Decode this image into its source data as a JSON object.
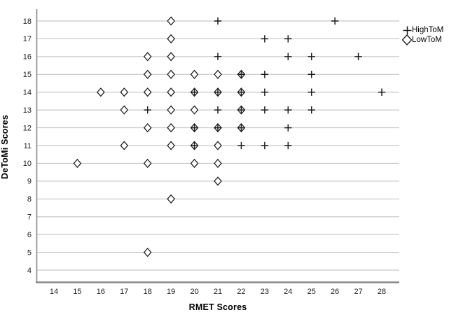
{
  "chart_data": {
    "type": "scatter",
    "title": "",
    "xlabel": "RMET Scores",
    "ylabel": "DeToMi Scores",
    "xlim": [
      13.25,
      28.75
    ],
    "ylim": [
      3.3,
      18.65
    ],
    "x_ticks": [
      14,
      15,
      16,
      17,
      18,
      19,
      20,
      21,
      22,
      23,
      24,
      25,
      26,
      27,
      28
    ],
    "y_ticks": [
      4,
      5,
      6,
      7,
      8,
      9,
      10,
      11,
      12,
      13,
      14,
      15,
      16,
      17,
      18
    ],
    "grid": "horizontal-only",
    "legend_position": "top-right-outside",
    "series": [
      {
        "name": "LowToM",
        "marker": "diamond",
        "points": [
          [
            19,
            18
          ],
          [
            19,
            17
          ],
          [
            18,
            16
          ],
          [
            19,
            16
          ],
          [
            18,
            15
          ],
          [
            19,
            15
          ],
          [
            20,
            15
          ],
          [
            21,
            15
          ],
          [
            22,
            15
          ],
          [
            16,
            14
          ],
          [
            17,
            14
          ],
          [
            18,
            14
          ],
          [
            19,
            14
          ],
          [
            20,
            14
          ],
          [
            21,
            14
          ],
          [
            22,
            14
          ],
          [
            17,
            13
          ],
          [
            19,
            13
          ],
          [
            20,
            13
          ],
          [
            22,
            13
          ],
          [
            18,
            12
          ],
          [
            19,
            12
          ],
          [
            20,
            12
          ],
          [
            21,
            12
          ],
          [
            22,
            12
          ],
          [
            17,
            11
          ],
          [
            19,
            11
          ],
          [
            20,
            11
          ],
          [
            21,
            11
          ],
          [
            15,
            10
          ],
          [
            18,
            10
          ],
          [
            20,
            10
          ],
          [
            21,
            10
          ],
          [
            21,
            9
          ],
          [
            19,
            8
          ],
          [
            18,
            5
          ]
        ]
      },
      {
        "name": "HighToM",
        "marker": "plus",
        "points": [
          [
            21,
            18
          ],
          [
            26,
            18
          ],
          [
            23,
            17
          ],
          [
            24,
            17
          ],
          [
            21,
            16
          ],
          [
            24,
            16
          ],
          [
            25,
            16
          ],
          [
            27,
            16
          ],
          [
            22,
            15
          ],
          [
            23,
            15
          ],
          [
            25,
            15
          ],
          [
            20,
            14
          ],
          [
            21,
            14
          ],
          [
            22,
            14
          ],
          [
            23,
            14
          ],
          [
            25,
            14
          ],
          [
            28,
            14
          ],
          [
            18,
            13
          ],
          [
            21,
            13
          ],
          [
            22,
            13
          ],
          [
            23,
            13
          ],
          [
            24,
            13
          ],
          [
            25,
            13
          ],
          [
            20,
            12
          ],
          [
            21,
            12
          ],
          [
            22,
            12
          ],
          [
            24,
            12
          ],
          [
            20,
            11
          ],
          [
            22,
            11
          ],
          [
            23,
            11
          ],
          [
            24,
            11
          ]
        ]
      }
    ],
    "colors": {
      "marker_stroke": "#1a1a1a",
      "diamond_fill": "#ffffff",
      "gridline": "#c8c8c8",
      "axis_line": "#888888",
      "tick_text": "#222222",
      "background": "#ffffff"
    },
    "legend": [
      {
        "label": "HighToM",
        "marker": "plus"
      },
      {
        "label": "LowToM",
        "marker": "diamond"
      }
    ]
  }
}
